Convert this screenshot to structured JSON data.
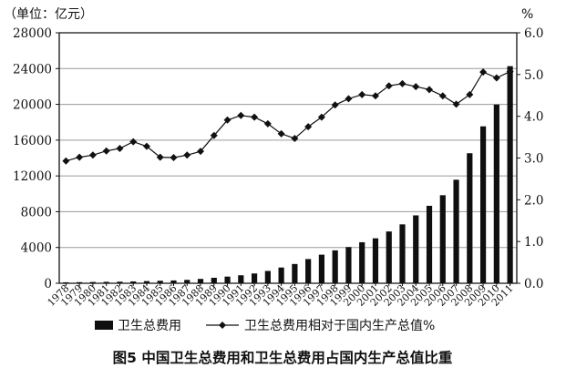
{
  "chart_data": {
    "type": "bar",
    "categories": [
      "1978",
      "1979",
      "1980",
      "1981",
      "1982",
      "1983",
      "1984",
      "1985",
      "1986",
      "1987",
      "1988",
      "1989",
      "1990",
      "1991",
      "1992",
      "1993",
      "1994",
      "1995",
      "1996",
      "1997",
      "1998",
      "1999",
      "2000",
      "2001",
      "2002",
      "2003",
      "2004",
      "2005",
      "2006",
      "2007",
      "2008",
      "2009",
      "2010",
      "2011"
    ],
    "left_axis_unit": "（单位：亿元）",
    "right_axis_unit": "%",
    "ylim": [
      0,
      28000
    ],
    "y2lim": [
      0,
      6.0
    ],
    "left_ticks": [
      0,
      4000,
      8000,
      12000,
      16000,
      20000,
      24000,
      28000
    ],
    "left_tick_labels": [
      "0",
      "4000",
      "8000",
      "12000",
      "16000",
      "20000",
      "24000",
      "28000"
    ],
    "right_ticks": [
      0,
      1.0,
      2.0,
      3.0,
      4.0,
      5.0,
      6.0
    ],
    "right_tick_labels": [
      "0.0",
      "1.0",
      "2.0",
      "3.0",
      "4.0",
      "5.0",
      "6.0"
    ],
    "grid": true,
    "legend_position": "bottom",
    "series": [
      {
        "name": "卫生总费用",
        "type": "bar",
        "axis": "left",
        "values": [
          110,
          126,
          143,
          160,
          177,
          207,
          242,
          279,
          315,
          379,
          488,
          615,
          747,
          893,
          1097,
          1378,
          1761,
          2155,
          2709,
          3197,
          3679,
          4048,
          4587,
          5026,
          5791,
          6584,
          7590,
          8660,
          9843,
          11574,
          14535,
          17542,
          19980,
          24269
        ]
      },
      {
        "name": "卫生总费用相对于国内生产总值%",
        "type": "line",
        "axis": "right",
        "marker": "diamond",
        "values": [
          2.93,
          3.02,
          3.07,
          3.17,
          3.23,
          3.39,
          3.28,
          3.02,
          3.01,
          3.07,
          3.16,
          3.54,
          3.91,
          4.02,
          3.98,
          3.82,
          3.58,
          3.47,
          3.75,
          3.98,
          4.27,
          4.42,
          4.52,
          4.49,
          4.73,
          4.78,
          4.71,
          4.64,
          4.49,
          4.29,
          4.52,
          5.06,
          4.92,
          5.07
        ]
      }
    ],
    "caption": "图5  中国卫生总费用和卫生总费用占国内生产总值比重"
  }
}
